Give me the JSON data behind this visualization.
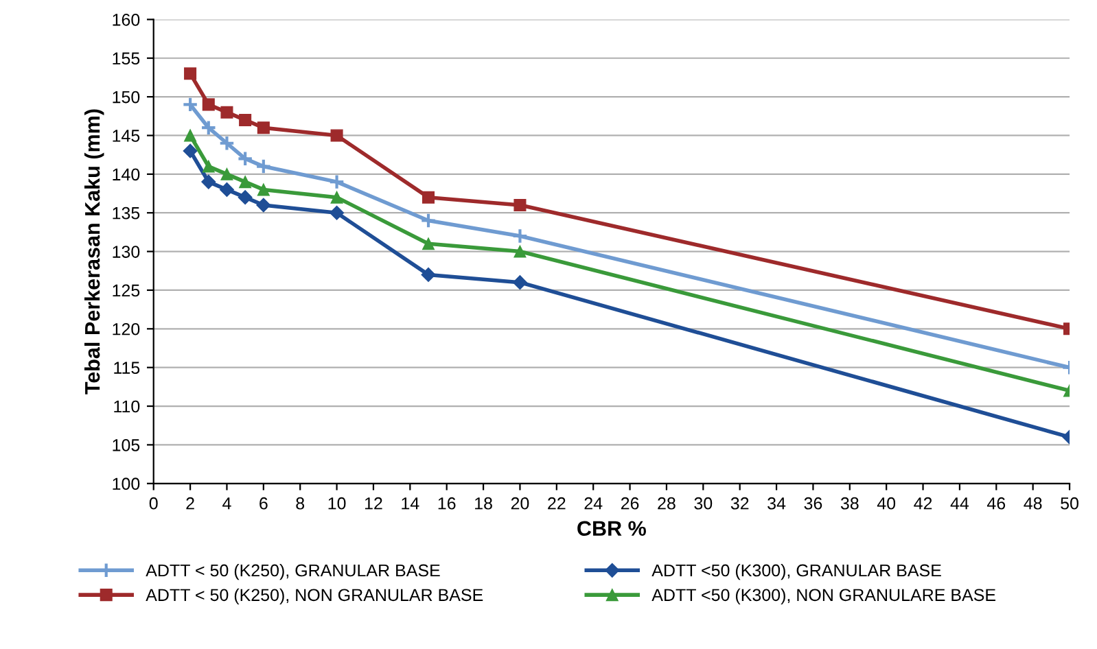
{
  "chart_data": {
    "type": "line",
    "xlabel": "CBR %",
    "ylabel": "Tebal Perkerasan Kaku (mm)",
    "x": [
      2,
      3,
      4,
      5,
      6,
      10,
      15,
      20,
      50
    ],
    "series": [
      {
        "name": "ADTT < 50 (K250), GRANULAR BASE",
        "color": "#6f9bd1",
        "marker": "cross",
        "values": [
          149,
          146,
          144,
          142,
          141,
          139,
          134,
          132,
          115
        ]
      },
      {
        "name": "ADTT < 50 (K250), NON GRANULAR BASE",
        "color": "#9e2a2b",
        "marker": "square",
        "values": [
          153,
          149,
          148,
          147,
          146,
          145,
          137,
          136,
          120
        ]
      },
      {
        "name": "ADTT <50 (K300), GRANULAR BASE",
        "color": "#1f4e96",
        "marker": "diamond",
        "values": [
          143,
          139,
          138,
          137,
          136,
          135,
          127,
          126,
          106
        ]
      },
      {
        "name": "ADTT <50 (K300), NON GRANULARE BASE",
        "color": "#3a9a3a",
        "marker": "triangle",
        "values": [
          145,
          141,
          140,
          139,
          138,
          137,
          131,
          130,
          112
        ]
      }
    ],
    "xlim": [
      0,
      50
    ],
    "xticks": [
      0,
      2,
      4,
      6,
      8,
      10,
      12,
      14,
      16,
      18,
      20,
      22,
      24,
      26,
      28,
      30,
      32,
      34,
      36,
      38,
      40,
      42,
      44,
      46,
      48,
      50
    ],
    "ylim": [
      100,
      160
    ],
    "yticks": [
      100,
      105,
      110,
      115,
      120,
      125,
      130,
      135,
      140,
      145,
      150,
      155,
      160
    ],
    "grid": "y",
    "legend": "bottom",
    "line_style": "solid"
  }
}
